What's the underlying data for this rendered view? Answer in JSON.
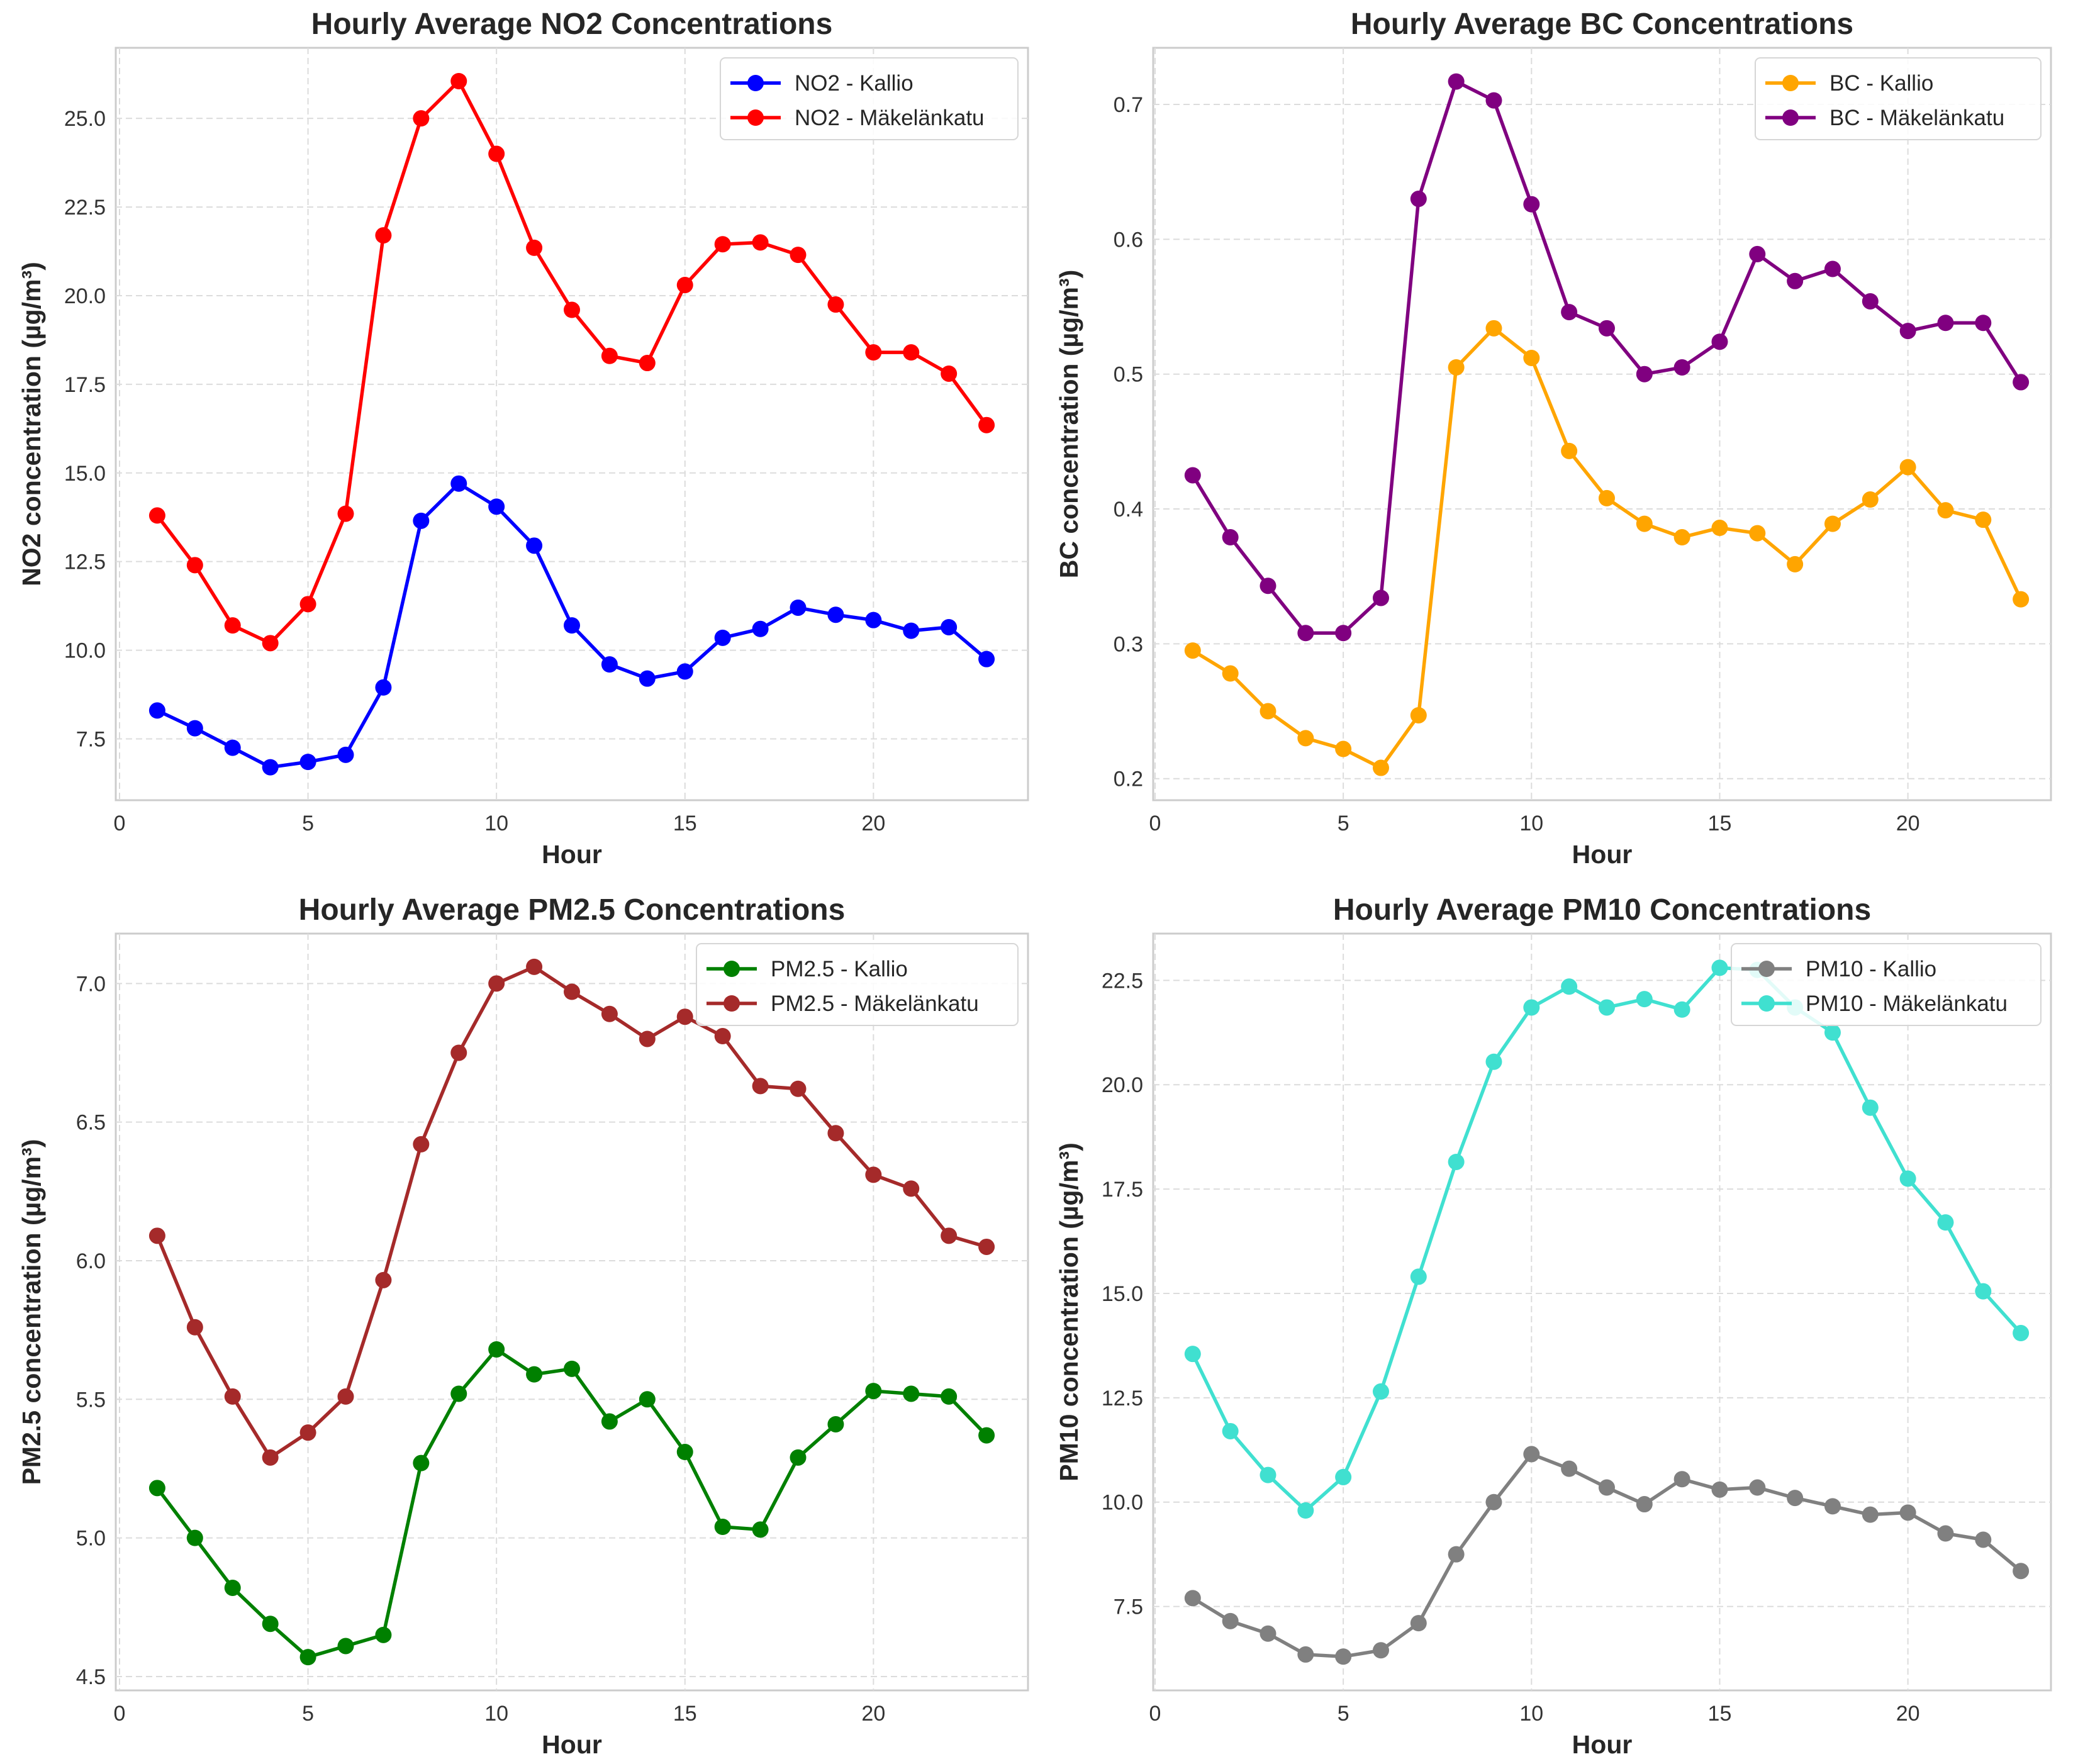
{
  "chart_data": [
    {
      "type": "line",
      "title": "Hourly Average NO2 Concentrations",
      "xlabel": "Hour",
      "ylabel": "NO2 concentration (µg/m³)",
      "xlim": [
        -0.1,
        24.1
      ],
      "ylim": [
        5.77,
        26.99
      ],
      "xticks": [
        0,
        5,
        10,
        15,
        20
      ],
      "yticks": [
        7.5,
        10.0,
        12.5,
        15.0,
        17.5,
        20.0,
        22.5,
        25.0
      ],
      "ytick_decimals": 1,
      "grid": true,
      "legend": "top-right",
      "x": [
        1,
        2,
        3,
        4,
        5,
        6,
        7,
        8,
        9,
        10,
        11,
        12,
        13,
        14,
        15,
        16,
        17,
        18,
        19,
        20,
        21,
        22,
        23
      ],
      "series": [
        {
          "name": "NO2 - Kallio",
          "color": "#0000ff",
          "values": [
            8.3,
            7.8,
            7.25,
            6.7,
            6.85,
            7.05,
            8.95,
            13.65,
            14.7,
            14.05,
            12.95,
            10.7,
            9.6,
            9.2,
            9.4,
            10.35,
            10.6,
            11.2,
            11.0,
            10.85,
            10.55,
            10.65,
            9.75
          ]
        },
        {
          "name": "NO2 - Mäkelänkatu",
          "color": "#ff0000",
          "values": [
            13.8,
            12.4,
            10.7,
            10.2,
            11.3,
            13.85,
            21.7,
            25.0,
            26.05,
            24.0,
            21.35,
            19.6,
            18.3,
            18.1,
            20.3,
            21.45,
            21.5,
            21.15,
            19.75,
            18.4,
            18.4,
            17.8,
            16.35
          ]
        }
      ]
    },
    {
      "type": "line",
      "title": "Hourly Average BC Concentrations",
      "xlabel": "Hour",
      "ylabel": "BC concentration (µg/m³)",
      "xlim": [
        -0.05,
        23.8
      ],
      "ylim": [
        0.184,
        0.742
      ],
      "xticks": [
        0,
        5,
        10,
        15,
        20
      ],
      "yticks": [
        0.2,
        0.3,
        0.4,
        0.5,
        0.6,
        0.7
      ],
      "ytick_decimals": 1,
      "grid": true,
      "legend": "top-right",
      "x": [
        1,
        2,
        3,
        4,
        5,
        6,
        7,
        8,
        9,
        10,
        11,
        12,
        13,
        14,
        15,
        16,
        17,
        18,
        19,
        20,
        21,
        22,
        23
      ],
      "series": [
        {
          "name": "BC - Kallio",
          "color": "#ffa500",
          "values": [
            0.295,
            0.278,
            0.25,
            0.23,
            0.222,
            0.208,
            0.247,
            0.505,
            0.534,
            0.512,
            0.443,
            0.408,
            0.389,
            0.379,
            0.386,
            0.382,
            0.359,
            0.389,
            0.407,
            0.431,
            0.399,
            0.392,
            0.333
          ]
        },
        {
          "name": "BC - Mäkelänkatu",
          "color": "#800080",
          "values": [
            0.425,
            0.379,
            0.343,
            0.308,
            0.308,
            0.334,
            0.63,
            0.717,
            0.703,
            0.626,
            0.546,
            0.534,
            0.5,
            0.505,
            0.524,
            0.589,
            0.569,
            0.578,
            0.554,
            0.532,
            0.538,
            0.538,
            0.494
          ]
        }
      ]
    },
    {
      "type": "line",
      "title": "Hourly Average PM2.5 Concentrations",
      "xlabel": "Hour",
      "ylabel": "PM2.5 concentration (µg/m³)",
      "xlim": [
        -0.1,
        24.1
      ],
      "ylim": [
        4.45,
        7.18
      ],
      "xticks": [
        0,
        5,
        10,
        15,
        20
      ],
      "yticks": [
        4.5,
        5.0,
        5.5,
        6.0,
        6.5,
        7.0
      ],
      "ytick_decimals": 1,
      "grid": true,
      "legend": "top-right",
      "x": [
        1,
        2,
        3,
        4,
        5,
        6,
        7,
        8,
        9,
        10,
        11,
        12,
        13,
        14,
        15,
        16,
        17,
        18,
        19,
        20,
        21,
        22,
        23
      ],
      "series": [
        {
          "name": "PM2.5 - Kallio",
          "color": "#008000",
          "values": [
            5.18,
            5.0,
            4.82,
            4.69,
            4.57,
            4.61,
            4.65,
            5.27,
            5.52,
            5.68,
            5.59,
            5.61,
            5.42,
            5.5,
            5.31,
            5.04,
            5.03,
            5.29,
            5.41,
            5.53,
            5.52,
            5.51,
            5.37
          ]
        },
        {
          "name": "PM2.5 - Mäkelänkatu",
          "color": "#a52a2a",
          "values": [
            6.09,
            5.76,
            5.51,
            5.29,
            5.38,
            5.51,
            5.93,
            6.42,
            6.75,
            7.0,
            7.06,
            6.97,
            6.89,
            6.8,
            6.88,
            6.81,
            6.63,
            6.62,
            6.46,
            6.31,
            6.26,
            6.09,
            6.05
          ]
        }
      ]
    },
    {
      "type": "line",
      "title": "Hourly Average PM10 Concentrations",
      "xlabel": "Hour",
      "ylabel": "PM10 concentration (µg/m³)",
      "xlim": [
        -0.05,
        23.8
      ],
      "ylim": [
        5.49,
        23.62
      ],
      "xticks": [
        0,
        5,
        10,
        15,
        20
      ],
      "yticks": [
        7.5,
        10.0,
        12.5,
        15.0,
        17.5,
        20.0,
        22.5
      ],
      "ytick_decimals": 1,
      "grid": true,
      "legend": "top-right",
      "x": [
        1,
        2,
        3,
        4,
        5,
        6,
        7,
        8,
        9,
        10,
        11,
        12,
        13,
        14,
        15,
        16,
        17,
        18,
        19,
        20,
        21,
        22,
        23
      ],
      "series": [
        {
          "name": "PM10 - Kallio",
          "color": "#808080",
          "values": [
            7.7,
            7.15,
            6.85,
            6.35,
            6.3,
            6.45,
            7.1,
            8.75,
            10.0,
            11.15,
            10.8,
            10.35,
            9.95,
            10.55,
            10.3,
            10.35,
            10.1,
            9.9,
            9.7,
            9.75,
            9.25,
            9.1,
            8.35
          ]
        },
        {
          "name": "PM10 - Mäkelänkatu",
          "color": "#40e0d0",
          "values": [
            13.55,
            11.7,
            10.65,
            9.8,
            10.6,
            12.65,
            15.4,
            18.15,
            20.55,
            21.85,
            22.35,
            21.85,
            22.05,
            21.8,
            22.8,
            22.75,
            21.85,
            21.25,
            19.45,
            17.75,
            16.7,
            15.05,
            14.05
          ]
        }
      ]
    }
  ]
}
